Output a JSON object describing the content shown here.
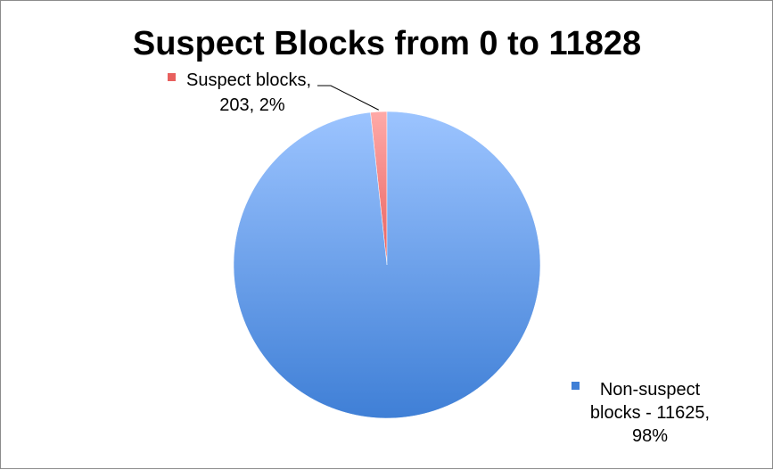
{
  "chart_data": {
    "type": "pie",
    "title": "Suspect Blocks from 0 to 11828",
    "slices": [
      {
        "name": "Suspect blocks",
        "value": 203,
        "percent": "2%",
        "label_lines": [
          "Suspect blocks,",
          "203, 2%"
        ],
        "color": "#e8605e",
        "color_light": "#ffaaa8"
      },
      {
        "name": "Non-suspect blocks",
        "value": 11625,
        "percent": "98%",
        "label_lines": [
          "Non-suspect",
          "blocks - 11625,",
          "98%"
        ],
        "color": "#3f7fd6",
        "color_light": "#9cc4ff"
      }
    ],
    "legend": "none",
    "data_labels": "outside-with-markers"
  }
}
